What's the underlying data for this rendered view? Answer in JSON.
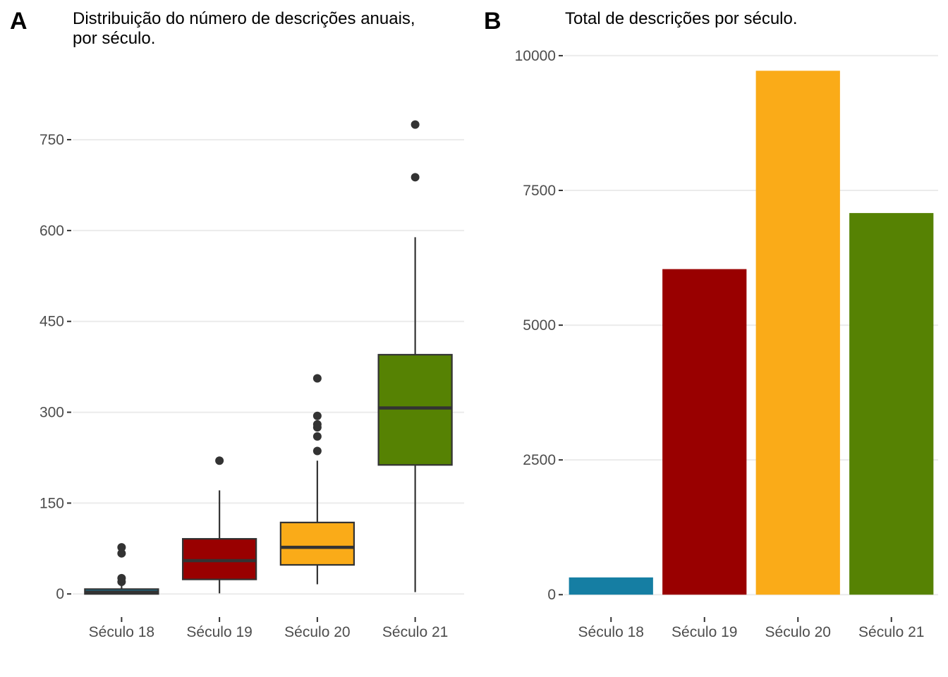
{
  "chart_data": [
    {
      "type": "box",
      "panel_tag": "A",
      "title_lines": [
        "Distribuição do número de descrições anuais,",
        "por século."
      ],
      "xlabel": "",
      "ylabel": "",
      "ylim": [
        -30,
        870
      ],
      "yticks": [
        0,
        150,
        300,
        450,
        600,
        750
      ],
      "grid": true,
      "categories": [
        "Século 18",
        "Século 19",
        "Século 20",
        "Século 21"
      ],
      "colors": [
        "#157ea3",
        "#990000",
        "#faab18",
        "#568203"
      ],
      "boxes": [
        {
          "category": "Século 18",
          "min": 0,
          "q1": 0,
          "median": 3,
          "q3": 8,
          "max": 16,
          "outliers": [
            20,
            26,
            67,
            77
          ]
        },
        {
          "category": "Século 19",
          "min": 1,
          "q1": 24,
          "median": 55,
          "q3": 91,
          "max": 171,
          "outliers": [
            220
          ]
        },
        {
          "category": "Século 20",
          "min": 16,
          "q1": 48,
          "median": 77,
          "q3": 118,
          "max": 220,
          "outliers": [
            236,
            260,
            275,
            280,
            294,
            356
          ]
        },
        {
          "category": "Século 21",
          "min": 3,
          "q1": 213,
          "median": 307,
          "q3": 395,
          "max": 589,
          "outliers": [
            688,
            775
          ]
        }
      ]
    },
    {
      "type": "bar",
      "panel_tag": "B",
      "title_lines": [
        "Total de descrições por século."
      ],
      "xlabel": "",
      "ylabel": "",
      "ylim": [
        -350,
        10300
      ],
      "yticks": [
        0,
        2500,
        5000,
        7500,
        10000
      ],
      "grid": true,
      "categories": [
        "Século 18",
        "Século 19",
        "Século 20",
        "Século 21"
      ],
      "colors": [
        "#157ea3",
        "#990000",
        "#faab18",
        "#568203"
      ],
      "values": [
        320,
        6040,
        9720,
        7080
      ]
    }
  ]
}
